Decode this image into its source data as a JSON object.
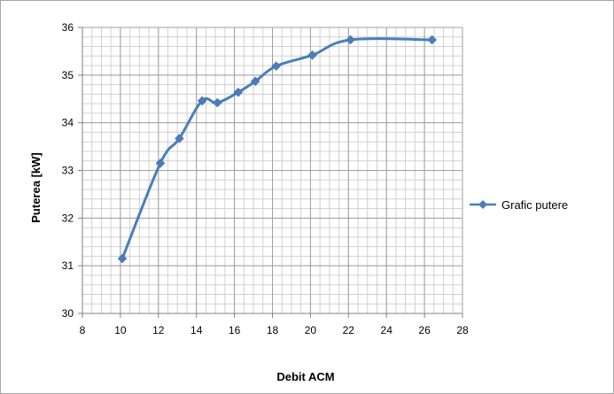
{
  "chart_data": {
    "type": "line",
    "title": "",
    "xlabel": "Debit ACM",
    "ylabel": "Puterea [kW]",
    "xlim": [
      8,
      28
    ],
    "ylim": [
      30,
      36
    ],
    "x_ticks": [
      8,
      10,
      12,
      14,
      16,
      18,
      20,
      22,
      24,
      26,
      28
    ],
    "y_ticks": [
      30,
      31,
      32,
      33,
      34,
      35,
      36
    ],
    "x_minor_step": 0.5,
    "y_minor_step": 0.2,
    "grid": true,
    "smoothed": true,
    "legend_position": "right",
    "series": [
      {
        "name": "Grafic putere",
        "color": "#4a7ebb",
        "marker": "diamond",
        "x": [
          10.1,
          12.1,
          13.1,
          14.3,
          15.1,
          16.2,
          17.1,
          18.2,
          20.1,
          22.1,
          26.4
        ],
        "y": [
          31.15,
          33.15,
          33.67,
          34.46,
          34.42,
          34.64,
          34.87,
          35.19,
          35.42,
          35.74,
          35.74
        ]
      }
    ]
  }
}
